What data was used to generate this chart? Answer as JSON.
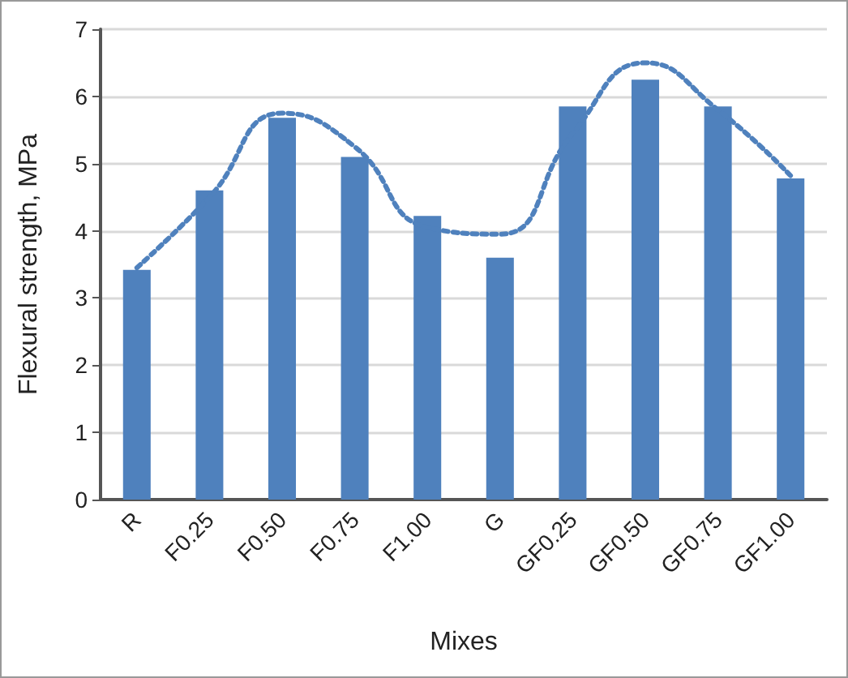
{
  "chart_data": {
    "type": "bar",
    "xlabel": "Mixes",
    "ylabel": "Flexural strength, MPa",
    "categories": [
      "R",
      "F0.25",
      "F0.50",
      "F0.75",
      "F1.00",
      "G",
      "GF0.25",
      "GF0.50",
      "GF0.75",
      "GF1.00"
    ],
    "series": [
      {
        "color": "#4f81bd",
        "values": [
          3.42,
          4.6,
          5.68,
          5.1,
          4.22,
          3.6,
          5.85,
          6.25,
          5.85,
          4.78
        ]
      },
      {
        "type": "line",
        "color": "#4f81bd",
        "line_style": "dotted",
        "marker": "none",
        "x": [
          "R",
          "F0.25",
          "F0.50",
          "F0.75",
          "F1.00",
          "G",
          "GF0.25",
          "GF0.50",
          "GF0.75",
          "GF1.00"
        ],
        "values": [
          3.45,
          4.5,
          5.75,
          5.25,
          4.05,
          3.95,
          5.45,
          6.5,
          5.8,
          4.82
        ]
      }
    ],
    "ylim": [
      0,
      7
    ],
    "yticks": [
      0,
      1,
      2,
      3,
      4,
      5,
      6,
      7
    ],
    "grid": "y",
    "legend": false
  }
}
